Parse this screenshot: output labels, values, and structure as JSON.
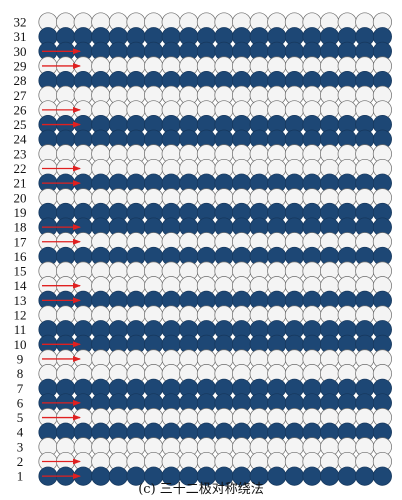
{
  "figure": {
    "caption": "(c) 三十二极对称绕法",
    "colors": {
      "filled": "#1d4775",
      "empty": "#f4f4f4",
      "outline": "#6c6c6c",
      "arrow": "#e02020"
    },
    "circles_per_row": 20,
    "rows": [
      {
        "label": "32",
        "filled": false,
        "arrow": false
      },
      {
        "label": "31",
        "filled": true,
        "arrow": false
      },
      {
        "label": "30",
        "filled": true,
        "arrow": true
      },
      {
        "label": "29",
        "filled": false,
        "arrow": true
      },
      {
        "label": "28",
        "filled": true,
        "arrow": false
      },
      {
        "label": "27",
        "filled": false,
        "arrow": false
      },
      {
        "label": "26",
        "filled": false,
        "arrow": true
      },
      {
        "label": "25",
        "filled": true,
        "arrow": true
      },
      {
        "label": "24",
        "filled": true,
        "arrow": false
      },
      {
        "label": "23",
        "filled": false,
        "arrow": false
      },
      {
        "label": "22",
        "filled": false,
        "arrow": true
      },
      {
        "label": "21",
        "filled": true,
        "arrow": true
      },
      {
        "label": "20",
        "filled": false,
        "arrow": false
      },
      {
        "label": "19",
        "filled": true,
        "arrow": false
      },
      {
        "label": "18",
        "filled": true,
        "arrow": true
      },
      {
        "label": "17",
        "filled": false,
        "arrow": true
      },
      {
        "label": "16",
        "filled": true,
        "arrow": false
      },
      {
        "label": "15",
        "filled": false,
        "arrow": false
      },
      {
        "label": "14",
        "filled": false,
        "arrow": true
      },
      {
        "label": "13",
        "filled": true,
        "arrow": true
      },
      {
        "label": "12",
        "filled": false,
        "arrow": false
      },
      {
        "label": "11",
        "filled": true,
        "arrow": false
      },
      {
        "label": "10",
        "filled": true,
        "arrow": true
      },
      {
        "label": "9",
        "filled": false,
        "arrow": true
      },
      {
        "label": "8",
        "filled": false,
        "arrow": false
      },
      {
        "label": "7",
        "filled": true,
        "arrow": false
      },
      {
        "label": "6",
        "filled": true,
        "arrow": true
      },
      {
        "label": "5",
        "filled": false,
        "arrow": true
      },
      {
        "label": "4",
        "filled": true,
        "arrow": false
      },
      {
        "label": "3",
        "filled": false,
        "arrow": false
      },
      {
        "label": "2",
        "filled": false,
        "arrow": true
      },
      {
        "label": "1",
        "filled": true,
        "arrow": true
      }
    ]
  }
}
